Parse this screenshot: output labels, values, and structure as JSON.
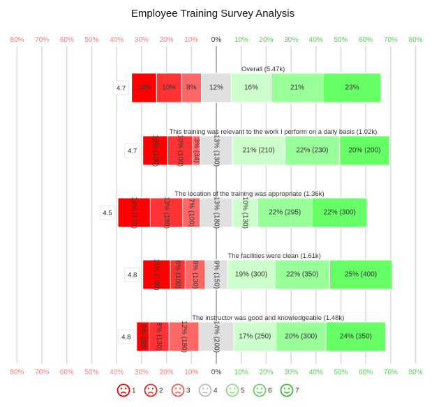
{
  "chart_data": {
    "type": "bar",
    "title": "Employee Training Survey Analysis",
    "axis": {
      "ticks": [
        -80,
        -70,
        -60,
        -50,
        -40,
        -30,
        -20,
        -10,
        0,
        10,
        20,
        30,
        40,
        50,
        60,
        70,
        80
      ],
      "tick_labels": [
        "80%",
        "70%",
        "60%",
        "50%",
        "40%",
        "30%",
        "20%",
        "10%",
        "0%",
        "10%",
        "20%",
        "30%",
        "40%",
        "50%",
        "60%",
        "70%",
        "80%"
      ],
      "range": [
        -80,
        80
      ],
      "grid": true
    },
    "legend": {
      "placement": "bottom",
      "entries": [
        "1",
        "2",
        "3",
        "4",
        "5",
        "6",
        "7"
      ]
    },
    "colors": [
      "#ff0000",
      "#ff3333",
      "#ff6666",
      "#e0e0e0",
      "#ccffcc",
      "#99ff99",
      "#66ff66"
    ],
    "questions": [
      {
        "label": "Overall (5.47k)",
        "score": "4.7",
        "values": [
          10,
          10,
          8,
          12,
          16,
          21,
          23
        ],
        "labels": [
          "10%",
          "10%",
          "8%",
          "12%",
          "16%",
          "21%",
          "23%"
        ]
      },
      {
        "label": "This training was relevant to the work I perform on a daily basis (1.02k)",
        "score": "4.7",
        "values": [
          10,
          10,
          3,
          13,
          21,
          22,
          20
        ],
        "labels": [
          "10% (100)",
          "10% (100)",
          "3% (34)",
          "13% (130)",
          "21% (210)",
          "22% (230)",
          "20% (200)"
        ]
      },
      {
        "label": "The location of the training was appropriate (1.36k)",
        "score": "4.5",
        "values": [
          13,
          13,
          7,
          13,
          10,
          22,
          22
        ],
        "labels": [
          "13% (170)",
          "13% (180)",
          "7% (100)",
          "13% (180)",
          "10% (130)",
          "22% (295)",
          "22% (300)"
        ]
      },
      {
        "label": "The facilities were clean (1.61k)",
        "score": "4.8",
        "values": [
          11,
          6,
          8,
          9,
          19,
          22,
          25
        ],
        "labels": [
          "11% (180)",
          "6% (100)",
          "8% (130)",
          "9% (150)",
          "19% (300)",
          "22% (350)",
          "25% (400)"
        ]
      },
      {
        "label": "The instructor was good and knowledgeable (1.48k)",
        "score": "4.8",
        "values": [
          5,
          8,
          12,
          14,
          17,
          20,
          24
        ],
        "labels": [
          "5% (80)",
          "8% (130)",
          "12% (180)",
          "14% (200)",
          "17% (250)",
          "20% (300)",
          "24% (350)"
        ]
      }
    ]
  }
}
